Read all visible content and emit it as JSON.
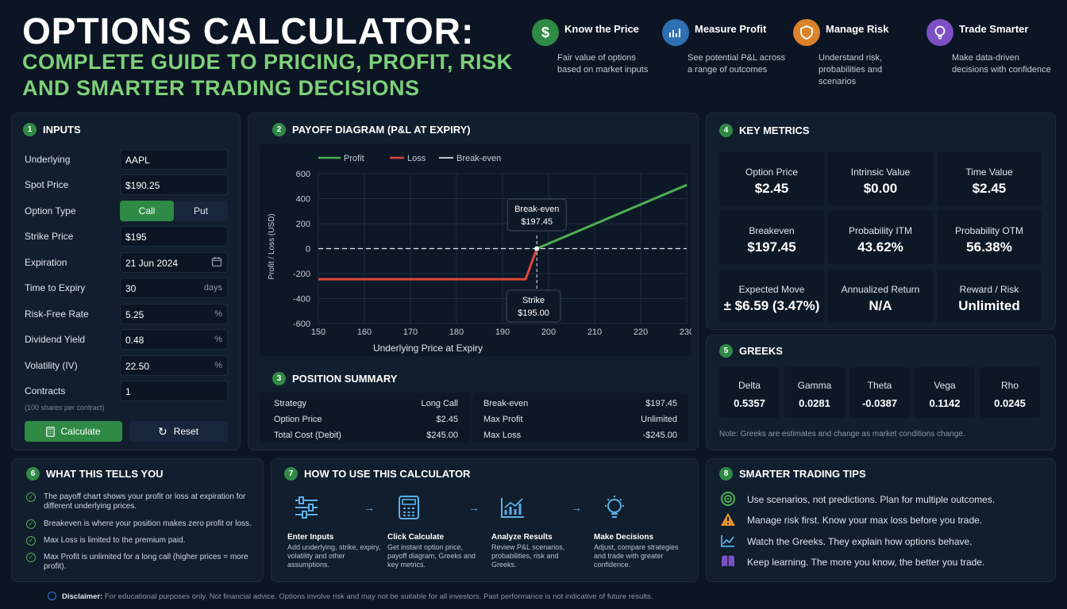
{
  "header": {
    "title": "OPTIONS CALCULATOR:",
    "subtitle_line1": "COMPLETE GUIDE TO PRICING, PROFIT, RISK",
    "subtitle_line2": "AND SMARTER TRADING DECISIONS"
  },
  "features": [
    {
      "icon": "dollar-icon",
      "color": "#2f8a45",
      "title": "Know the Price",
      "desc": "Fair value of options based on market inputs"
    },
    {
      "icon": "chart-icon",
      "color": "#2f6fb3",
      "title": "Measure Profit",
      "desc": "See potential P&L across a range of outcomes"
    },
    {
      "icon": "shield-icon",
      "color": "#d9822b",
      "title": "Manage Risk",
      "desc": "Understand risk, probabilities and scenarios"
    },
    {
      "icon": "lightbulb-icon",
      "color": "#7c4fc4",
      "title": "Trade Smarter",
      "desc": "Make data-driven decisions with confidence"
    }
  ],
  "inputs": {
    "num": "1",
    "title": "INPUTS",
    "underlying_label": "Underlying",
    "underlying_value": "AAPL",
    "spot_label": "Spot Price",
    "spot_value": "$190.25",
    "type_label": "Option Type",
    "type_call": "Call",
    "type_put": "Put",
    "strike_label": "Strike Price",
    "strike_value": "$195",
    "expiration_label": "Expiration",
    "expiration_value": "21 Jun 2024",
    "tte_label": "Time to Expiry",
    "tte_value": "30",
    "tte_unit": "days",
    "rfr_label": "Risk-Free Rate",
    "rfr_value": "5.25",
    "rfr_unit": "%",
    "div_label": "Dividend Yield",
    "div_value": "0.48",
    "div_unit": "%",
    "vol_label": "Volatility (IV)",
    "vol_value": "22.50",
    "vol_unit": "%",
    "contracts_label": "Contracts",
    "contracts_value": "1",
    "contracts_note": "(100 shares per contract)",
    "calculate_label": "Calculate",
    "reset_label": "Reset"
  },
  "payoff": {
    "num": "2",
    "title": "PAYOFF DIAGRAM (P&L AT EXPIRY)",
    "legend_profit": "Profit",
    "legend_loss": "Loss",
    "legend_breakeven": "Break-even",
    "breakeven_label": "Break-even",
    "breakeven_value": "$197.45",
    "strike_label": "Strike",
    "strike_value": "$195.00"
  },
  "chart_data": {
    "type": "line",
    "xlabel": "Underlying Price at Expiry",
    "ylabel": "Profit / Loss (USD)",
    "xlim": [
      150,
      230
    ],
    "ylim": [
      -600,
      600
    ],
    "x_ticks": [
      150,
      160,
      170,
      180,
      190,
      200,
      210,
      220,
      230
    ],
    "y_ticks": [
      600,
      400,
      200,
      0,
      -200,
      -400,
      -600
    ],
    "series": [
      {
        "name": "Loss",
        "color": "#e0463c",
        "x": [
          150,
          185,
          195,
          197.45
        ],
        "y": [
          -245,
          -245,
          -245,
          0
        ]
      },
      {
        "name": "Profit",
        "color": "#4caf50",
        "x": [
          197.45,
          230
        ],
        "y": [
          0,
          510
        ]
      }
    ],
    "breakeven_x": 197.45,
    "strike_x": 195
  },
  "position": {
    "num": "3",
    "title": "POSITION SUMMARY",
    "left": [
      {
        "label": "Strategy",
        "value": "Long Call"
      },
      {
        "label": "Option Price",
        "value": "$2.45"
      },
      {
        "label": "Total Cost (Debit)",
        "value": "$245.00"
      }
    ],
    "right": [
      {
        "label": "Break-even",
        "value": "$197.45"
      },
      {
        "label": "Max Profit",
        "value": "Unlimited"
      },
      {
        "label": "Max Loss",
        "value": "-$245.00"
      }
    ]
  },
  "metrics": {
    "num": "4",
    "title": "KEY METRICS",
    "items": [
      {
        "label": "Option Price",
        "value": "$2.45"
      },
      {
        "label": "Intrinsic Value",
        "value": "$0.00"
      },
      {
        "label": "Time Value",
        "value": "$2.45"
      },
      {
        "label": "Breakeven",
        "value": "$197.45"
      },
      {
        "label": "Probability ITM",
        "value": "43.62%"
      },
      {
        "label": "Probability OTM",
        "value": "56.38%"
      },
      {
        "label": "Expected Move",
        "value": "± $6.59 (3.47%)"
      },
      {
        "label": "Annualized Return",
        "value": "N/A"
      },
      {
        "label": "Reward / Risk",
        "value": "Unlimited"
      }
    ]
  },
  "greeks": {
    "num": "5",
    "title": "GREEKS",
    "items": [
      {
        "label": "Delta",
        "value": "0.5357"
      },
      {
        "label": "Gamma",
        "value": "0.0281"
      },
      {
        "label": "Theta",
        "value": "-0.0387"
      },
      {
        "label": "Vega",
        "value": "0.1142"
      },
      {
        "label": "Rho",
        "value": "0.0245"
      }
    ],
    "note": "Note: Greeks are estimates and change as market conditions change."
  },
  "tells": {
    "num": "6",
    "title": "WHAT THIS TELLS YOU",
    "items": [
      "The payoff chart shows your profit or loss at expiration for different underlying prices.",
      "Breakeven is where your position makes zero profit or loss.",
      "Max Loss is limited to the premium paid.",
      "Max Profit is unlimited for a long call (higher prices = more profit)."
    ]
  },
  "howto": {
    "num": "7",
    "title": "HOW TO USE THIS CALCULATOR",
    "steps": [
      {
        "icon": "sliders-icon",
        "title": "Enter Inputs",
        "desc": "Add underlying, strike, expiry, volatility and other assumptions."
      },
      {
        "icon": "calculator-icon",
        "title": "Click Calculate",
        "desc": "Get instant option price, payoff diagram, Greeks and key metrics."
      },
      {
        "icon": "analytics-icon",
        "title": "Analyze Results",
        "desc": "Review P&L scenarios, probabilities, risk and Greeks."
      },
      {
        "icon": "lightbulb-icon",
        "title": "Make Decisions",
        "desc": "Adjust, compare strategies and trade with greater confidence."
      }
    ]
  },
  "tips": {
    "num": "8",
    "title": "SMARTER TRADING TIPS",
    "items": [
      {
        "icon": "target-icon",
        "text": "Use scenarios, not predictions. Plan for multiple outcomes."
      },
      {
        "icon": "warning-icon",
        "text": "Manage risk first. Know your max loss before you trade."
      },
      {
        "icon": "line-chart-icon",
        "text": "Watch the Greeks. They explain how options behave."
      },
      {
        "icon": "book-icon",
        "text": "Keep learning. The more you know, the better you trade."
      }
    ]
  },
  "disclaimer": {
    "label": "Disclaimer:",
    "text": "For educational purposes only. Not financial advice. Options involve risk and may not be suitable for all investors. Past performance is not indicative of future results."
  }
}
